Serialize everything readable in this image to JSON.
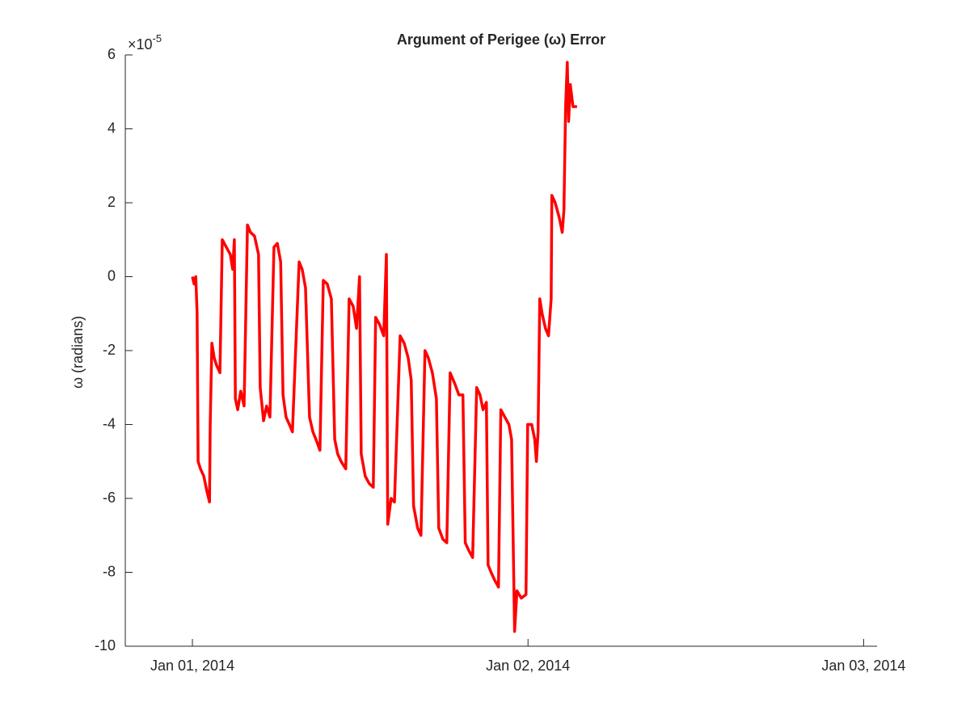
{
  "chart_data": {
    "type": "line",
    "title": "Argument of Perigee (ω) Error",
    "ylabel": "ω (radians)",
    "y_exponent_base": "×10",
    "y_exponent_power": "-5",
    "color": "#ff0000",
    "x": [
      0,
      0.005,
      0.01,
      0.014,
      0.017,
      0.024,
      0.034,
      0.043,
      0.051,
      0.053,
      0.058,
      0.065,
      0.072,
      0.082,
      0.089,
      0.101,
      0.113,
      0.12,
      0.125,
      0.128,
      0.135,
      0.144,
      0.154,
      0.164,
      0.173,
      0.185,
      0.197,
      0.202,
      0.212,
      0.221,
      0.231,
      0.243,
      0.253,
      0.263,
      0.27,
      0.279,
      0.289,
      0.298,
      0.318,
      0.327,
      0.337,
      0.349,
      0.359,
      0.368,
      0.38,
      0.39,
      0.402,
      0.414,
      0.424,
      0.433,
      0.443,
      0.457,
      0.467,
      0.479,
      0.489,
      0.498,
      0.503,
      0.515,
      0.527,
      0.539,
      0.546,
      0.558,
      0.57,
      0.578,
      0.582,
      0.592,
      0.602,
      0.619,
      0.631,
      0.643,
      0.652,
      0.659,
      0.671,
      0.681,
      0.693,
      0.703,
      0.715,
      0.727,
      0.734,
      0.746,
      0.758,
      0.768,
      0.782,
      0.794,
      0.806,
      0.813,
      0.823,
      0.835,
      0.847,
      0.857,
      0.866,
      0.876,
      0.881,
      0.89,
      0.9,
      0.912,
      0.919,
      0.931,
      0.943,
      0.951,
      0.96,
      0.967,
      0.98,
      0.994,
      0.999,
      1.011,
      1.02,
      1.025,
      1.03,
      1.035,
      1.042,
      1.052,
      1.061,
      1.069,
      1.071,
      1.081,
      1.093,
      1.102,
      1.107,
      1.112,
      1.117,
      1.121,
      1.126,
      1.134,
      1.146
    ],
    "values": [
      0,
      -0.2,
      0,
      -1,
      -5,
      -5.2,
      -5.4,
      -5.8,
      -6.1,
      -4,
      -1.8,
      -2.2,
      -2.4,
      -2.6,
      1,
      0.8,
      0.6,
      0.2,
      1,
      -3.3,
      -3.6,
      -3.1,
      -3.5,
      1.4,
      1.2,
      1.1,
      0.6,
      -3,
      -3.9,
      -3.5,
      -3.8,
      0.8,
      0.9,
      0.4,
      -3.2,
      -3.8,
      -4,
      -4.2,
      0.4,
      0.2,
      -0.3,
      -3.8,
      -4.2,
      -4.4,
      -4.7,
      -0.1,
      -0.2,
      -0.6,
      -4.4,
      -4.8,
      -5,
      -5.2,
      -0.6,
      -0.8,
      -1.4,
      0,
      -4.8,
      -5.4,
      -5.6,
      -5.7,
      -1.1,
      -1.3,
      -1.6,
      0.6,
      -6.7,
      -6,
      -6.1,
      -1.6,
      -1.8,
      -2.2,
      -2.8,
      -6.2,
      -6.8,
      -7,
      -2,
      -2.2,
      -2.6,
      -3.3,
      -6.8,
      -7.1,
      -7.2,
      -2.6,
      -2.9,
      -3.2,
      -3.2,
      -7.2,
      -7.4,
      -7.6,
      -3,
      -3.2,
      -3.6,
      -3.4,
      -7.8,
      -8,
      -8.2,
      -8.4,
      -3.6,
      -3.8,
      -4,
      -4.4,
      -9.6,
      -8.5,
      -8.7,
      -8.6,
      -4,
      -4,
      -4.4,
      -5,
      -4.2,
      -0.6,
      -1,
      -1.4,
      -1.6,
      -0.6,
      2.2,
      2,
      1.6,
      1.2,
      1.8,
      4.6,
      5.8,
      4.2,
      5.2,
      4.6,
      4.6
    ],
    "xlim": [
      -0.2,
      2.04
    ],
    "xticks": [
      {
        "value": 0,
        "label": "Jan 01, 2014"
      },
      {
        "value": 1,
        "label": "Jan 02, 2014"
      },
      {
        "value": 2,
        "label": "Jan 03, 2014"
      }
    ],
    "ylim": [
      -10,
      6
    ],
    "yticks": [
      -10,
      -8,
      -6,
      -4,
      -2,
      0,
      2,
      4,
      6
    ],
    "grid": false
  }
}
